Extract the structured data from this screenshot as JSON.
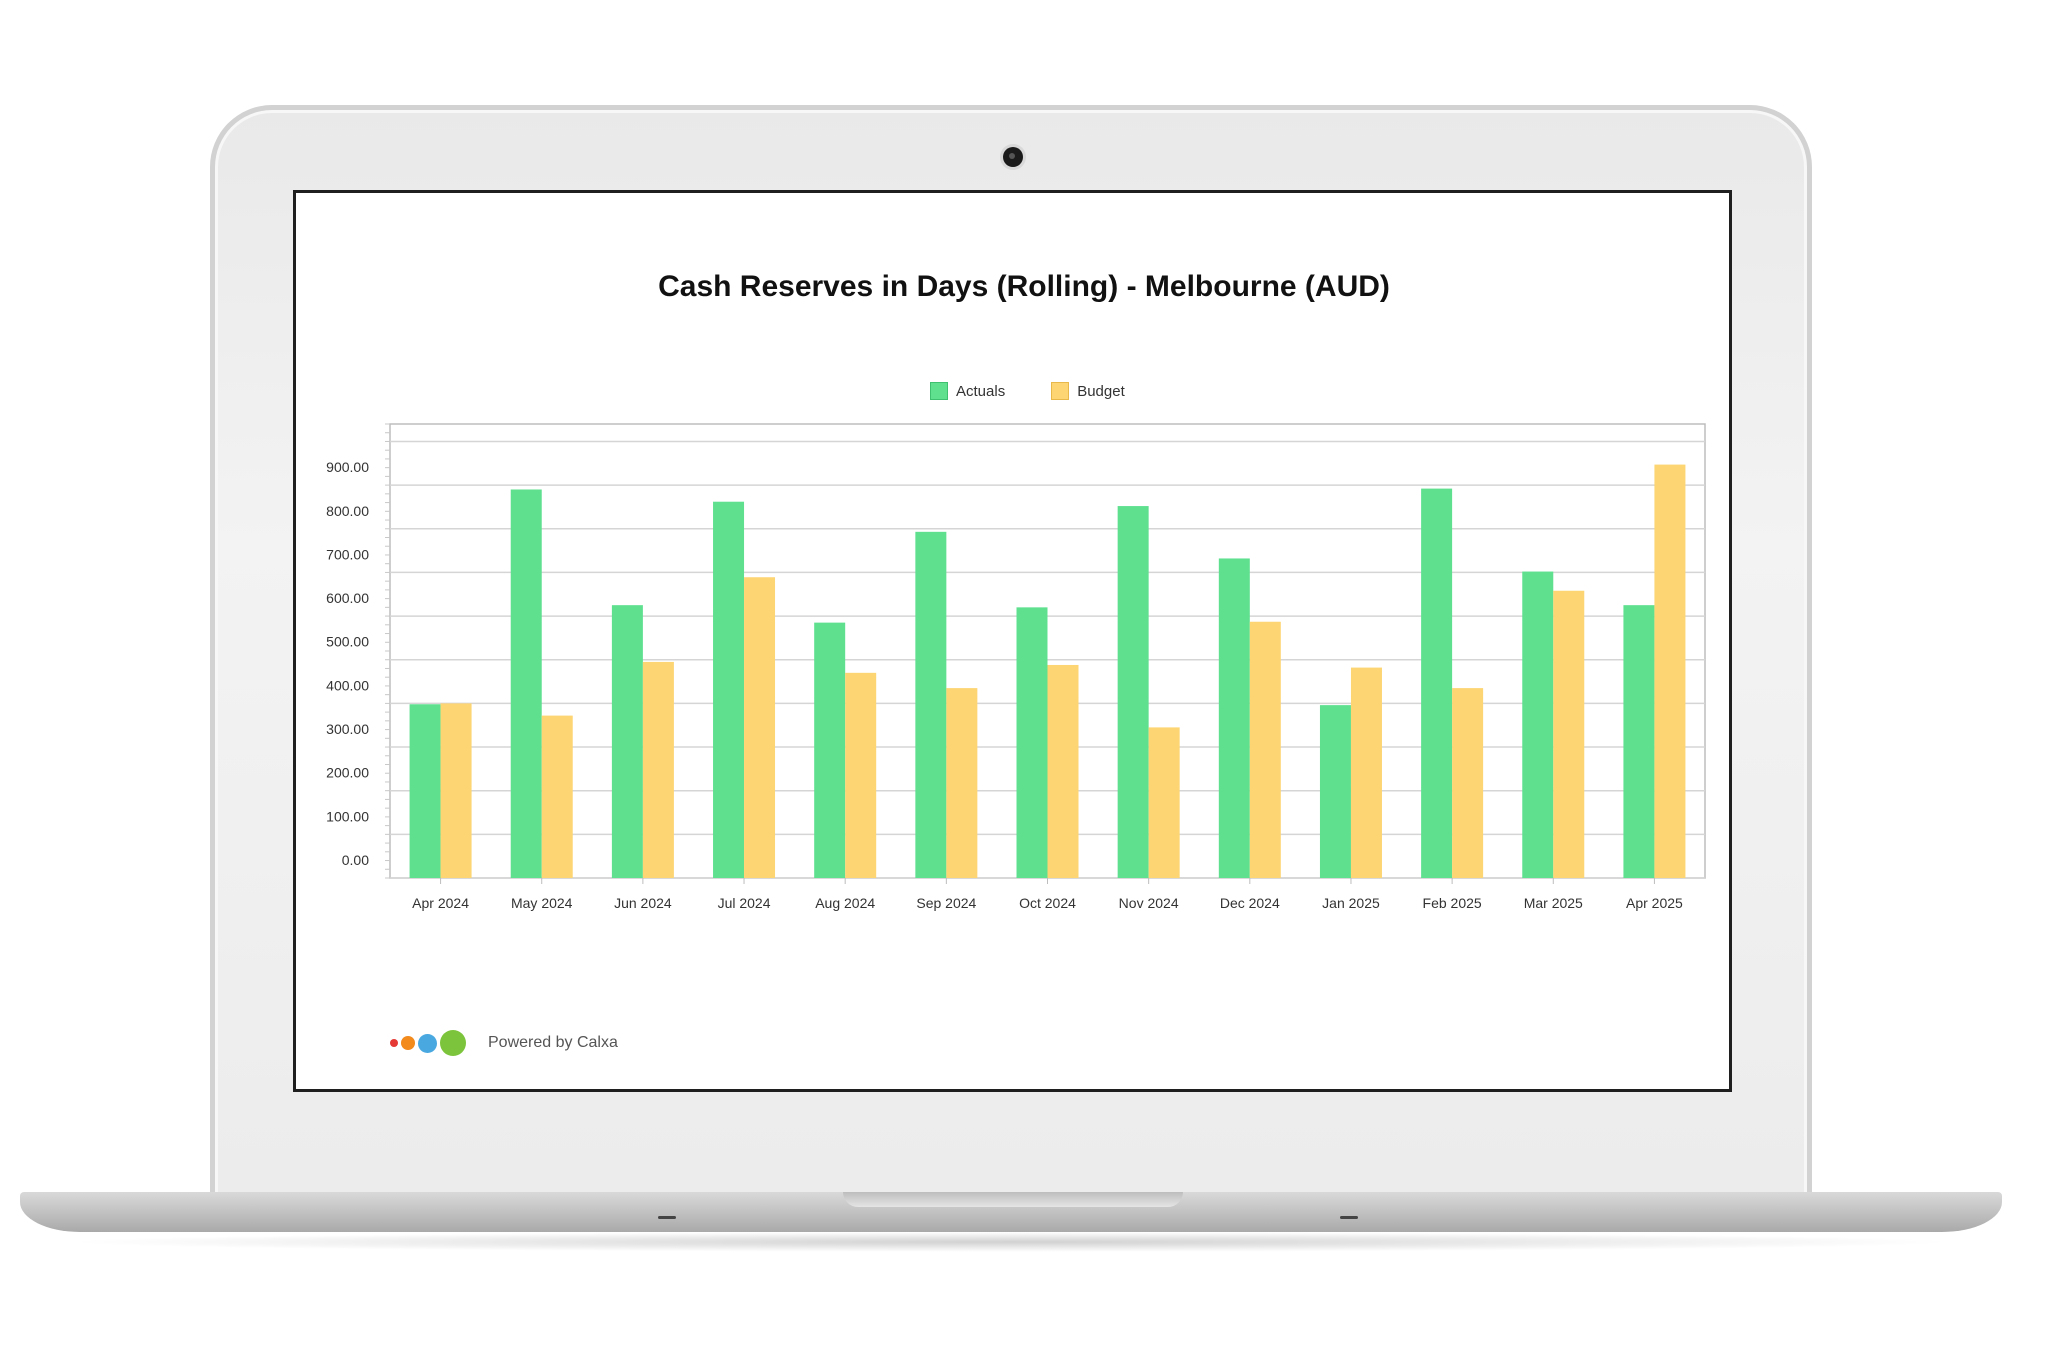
{
  "chart_data": {
    "type": "bar",
    "title": "Cash Reserves in Days (Rolling) - Melbourne (AUD)",
    "categories": [
      "Apr 2024",
      "May 2024",
      "Jun 2024",
      "Jul 2024",
      "Aug 2024",
      "Sep 2024",
      "Oct 2024",
      "Nov 2024",
      "Dec 2024",
      "Jan 2025",
      "Feb 2025",
      "Mar 2025",
      "Apr 2025"
    ],
    "series": [
      {
        "name": "Actuals",
        "color": "#5ee08f",
        "values": [
          398,
          890,
          625,
          862,
          585,
          793,
          620,
          852,
          732,
          396,
          892,
          702,
          625
        ]
      },
      {
        "name": "Budget",
        "color": "#fdd573",
        "values": [
          400,
          372,
          495,
          689,
          470,
          435,
          488,
          345,
          587,
          482,
          435,
          658,
          947
        ]
      }
    ],
    "yticks": [
      "0.00",
      "100.00",
      "200.00",
      "300.00",
      "400.00",
      "500.00",
      "600.00",
      "700.00",
      "800.00",
      "900.00"
    ],
    "ylim": [
      0,
      1040
    ],
    "grid": true,
    "legend_position": "top-center",
    "xlabel": "",
    "ylabel": ""
  },
  "footer": {
    "powered_by": "Powered by Calxa",
    "logo_colors": [
      "#e53935",
      "#f28a1c",
      "#4aa8e0",
      "#7cc43b"
    ]
  },
  "device": {
    "frame_color": "#e9e9e9",
    "screen_border_color": "#1f1f1f"
  }
}
